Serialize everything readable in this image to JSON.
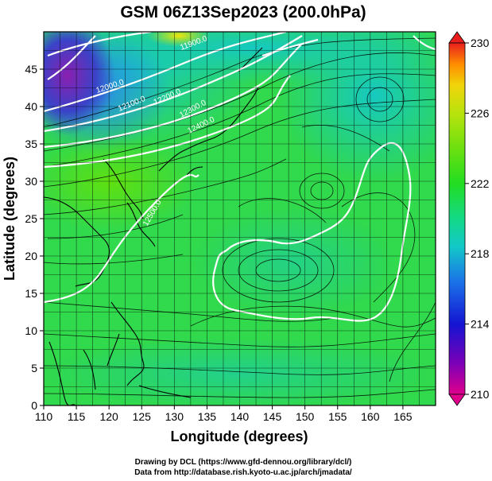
{
  "title": "GSM 06Z13Sep2023 (200.0hPa)",
  "xlabel": "Longitude (degrees)",
  "ylabel": "Latitude  (degrees)",
  "credits": [
    "Drawing by DCL (https://www.gfd-dennou.org/library/dcl/)",
    "Data from http://database.rish.kyoto-u.ac.jp/arch/jmadata/"
  ],
  "chart_data": {
    "type": "heatmap",
    "title": "GSM 06Z13Sep2023 (200.0hPa)",
    "xlabel": "Longitude (degrees)",
    "ylabel": "Latitude  (degrees)",
    "xlim": [
      110,
      170
    ],
    "ylim": [
      0,
      50
    ],
    "x_ticks": [
      110,
      115,
      120,
      125,
      130,
      135,
      140,
      145,
      150,
      155,
      160,
      165
    ],
    "y_ticks": [
      0,
      5,
      10,
      15,
      20,
      25,
      30,
      35,
      40,
      45
    ],
    "grid": true,
    "overlays": [
      "streamlines",
      "contours",
      "coastlines"
    ],
    "colorbar": {
      "min": 210,
      "max": 230,
      "tick_labels": [
        "210",
        "214",
        "218",
        "222",
        "226",
        "230"
      ],
      "colors": [
        "#e0008c",
        "#7a00b8",
        "#1414d2",
        "#1b73e8",
        "#13c8c8",
        "#13d987",
        "#22dd22",
        "#6ce00f",
        "#b9e30d",
        "#f0d50a",
        "#ff8c00",
        "#e81e1e"
      ],
      "placement": "right"
    },
    "contour_labels": [
      "11900.0",
      "12000.0",
      "12100.0",
      "12200.0",
      "12300.0",
      "12400.0",
      "12500.0"
    ]
  },
  "colors": {
    "field_background": "#31d94c",
    "contour": "#ffffff",
    "streamline": "#000000",
    "grid": "#000000"
  }
}
